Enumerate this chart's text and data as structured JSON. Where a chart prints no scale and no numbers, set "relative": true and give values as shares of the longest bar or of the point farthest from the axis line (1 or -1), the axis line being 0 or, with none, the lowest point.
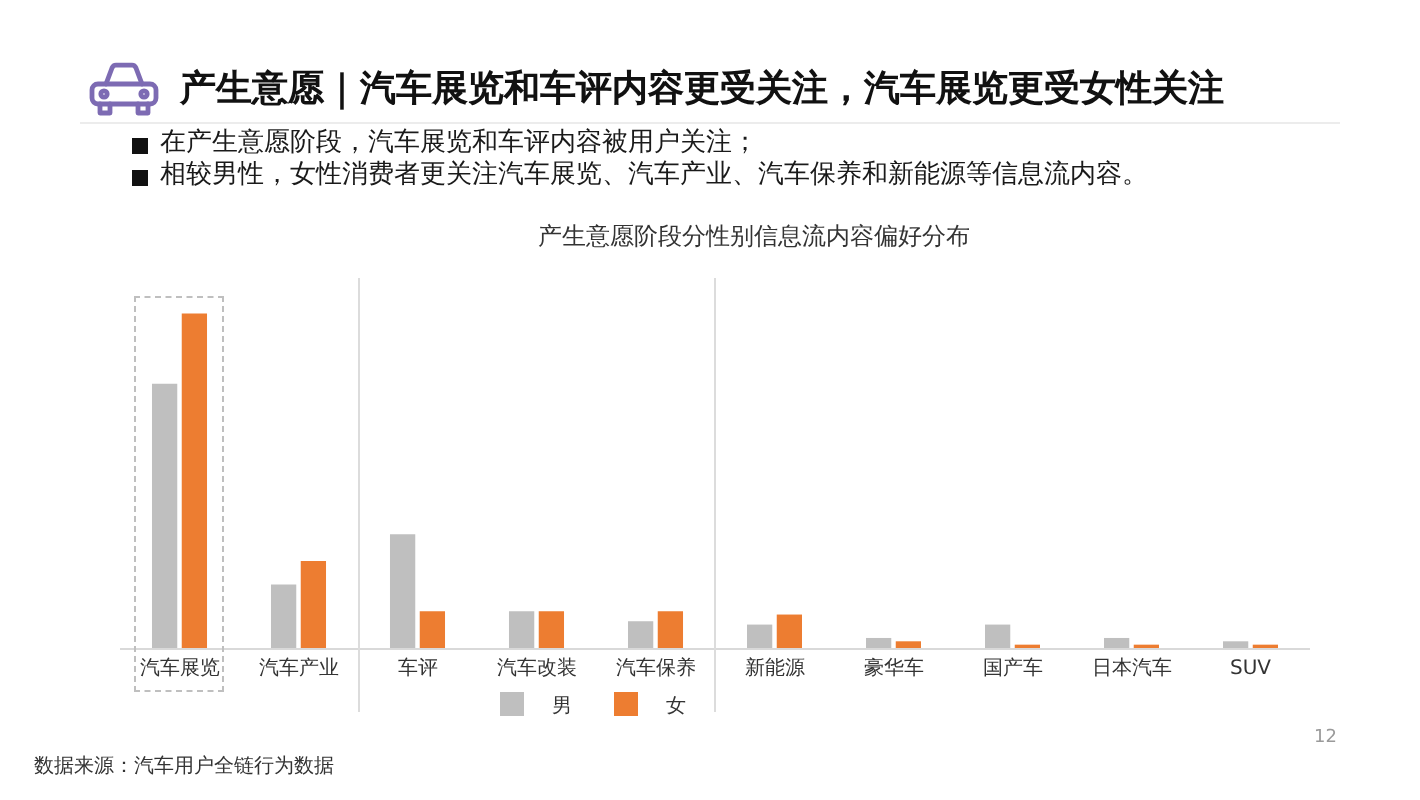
{
  "chart_data": {
    "type": "bar",
    "title": "产生意愿｜汽车展览和车评内容更受关注，汽车展览更受女性关注",
    "subtitle": "产生意愿阶段分性别信息流内容偏好分布",
    "categories": [
      "汽车展览",
      "汽车产业",
      "车评",
      "汽车改装",
      "汽车保养",
      "新能源",
      "豪华车",
      "国产车",
      "日本汽车",
      "SUV"
    ],
    "series": [
      {
        "name": "男",
        "color": "#bfbfbf",
        "values": [
          0.79,
          0.19,
          0.34,
          0.11,
          0.08,
          0.07,
          0.03,
          0.07,
          0.03,
          0.02
        ]
      },
      {
        "name": "女",
        "color": "#ed7d31",
        "values": [
          1,
          0.26,
          0.11,
          0.11,
          0.11,
          0.1,
          0.02,
          0.01,
          0.01,
          0.01
        ]
      }
    ],
    "relative": true,
    "legend": "bottom",
    "annotations": [
      "在产生意愿阶段，汽车展览和车评内容被用户关注；",
      "相较男性，女性消费者更关注汽车展览、汽车产业、汽车保养和新能源等信息流内容。",
      "数据来源：汽车用户全链行为数据",
      "12"
    ]
  }
}
